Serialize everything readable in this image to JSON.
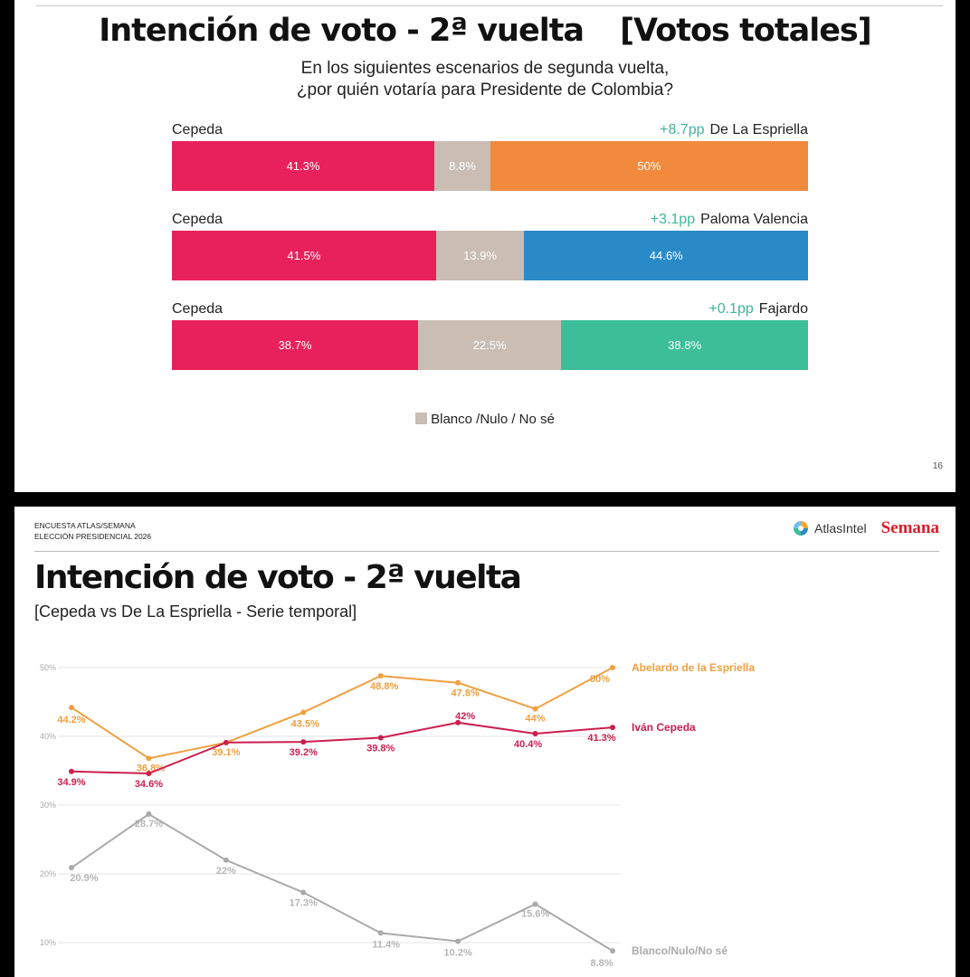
{
  "slide1": {
    "title_main": "Intención de voto - 2ª vuelta",
    "title_bracket": "[Votos totales]",
    "question_line1": "En los siguientes escenarios de segunda vuelta,",
    "question_line2": "¿por quién votaría para Presidente de Colombia?",
    "legend_label": "Blanco /Nulo / No sé",
    "page_number": "16",
    "colors": {
      "cepeda": "#e8215c",
      "blanco": "#c9bdb4",
      "espriella": "#f28a3e",
      "valencia": "#2a8ac8",
      "fajardo": "#3cbf98",
      "pp": "#3fb59a"
    }
  },
  "slide2": {
    "header_line1": "ENCUESTA ATLAS/SEMANA",
    "header_line2": "ELECCIÓN PRESIDENCIAL 2026",
    "logo_atlas": "AtlasIntel",
    "logo_semana": "Semana",
    "title": "Intención de voto - 2ª vuelta",
    "subtitle": "[Cepeda vs De La Espriella - Serie temporal]"
  },
  "chart_data": [
    {
      "type": "bar",
      "orientation": "horizontal-stacked",
      "scenarios": [
        {
          "left": "Cepeda",
          "right": "De La Espriella",
          "diff": "+8.7pp",
          "segments": [
            {
              "name": "Cepeda",
              "value": 41.3,
              "label": "41.3%",
              "color": "#e8215c"
            },
            {
              "name": "Blanco /Nulo / No sé",
              "value": 8.8,
              "label": "8.8%",
              "color": "#c9bdb4"
            },
            {
              "name": "De La Espriella",
              "value": 50,
              "label": "50%",
              "color": "#f28a3e"
            }
          ]
        },
        {
          "left": "Cepeda",
          "right": "Paloma Valencia",
          "diff": "+3.1pp",
          "segments": [
            {
              "name": "Cepeda",
              "value": 41.5,
              "label": "41.5%",
              "color": "#e8215c"
            },
            {
              "name": "Blanco /Nulo / No sé",
              "value": 13.9,
              "label": "13.9%",
              "color": "#c9bdb4"
            },
            {
              "name": "Paloma Valencia",
              "value": 44.6,
              "label": "44.6%",
              "color": "#2a8ac8"
            }
          ]
        },
        {
          "left": "Cepeda",
          "right": "Fajardo",
          "diff": "+0.1pp",
          "segments": [
            {
              "name": "Cepeda",
              "value": 38.7,
              "label": "38.7%",
              "color": "#e8215c"
            },
            {
              "name": "Blanco /Nulo / No sé",
              "value": 22.5,
              "label": "22.5%",
              "color": "#c9bdb4"
            },
            {
              "name": "Fajardo",
              "value": 38.8,
              "label": "38.8%",
              "color": "#3cbf98"
            }
          ]
        }
      ]
    },
    {
      "type": "line",
      "y_ticks": [
        "50%",
        "40%",
        "30%",
        "20%",
        "10%"
      ],
      "y_tick_values": [
        50,
        40,
        30,
        20,
        10
      ],
      "ylim": [
        10,
        50
      ],
      "grid": true,
      "series": [
        {
          "name": "Abelardo de la Espriella",
          "color": "#f0a040",
          "values": [
            44.2,
            36.8,
            39.1,
            43.5,
            48.8,
            47.8,
            44,
            50
          ],
          "labels": [
            "44.2%",
            "36.8%",
            "39.1%",
            "43.5%",
            "48.8%",
            "47.8%",
            "44%",
            "50%"
          ]
        },
        {
          "name": "Iván Cepeda",
          "color": "#cc1f4e",
          "values": [
            34.9,
            34.6,
            39.1,
            39.2,
            39.8,
            42,
            40.4,
            41.3
          ],
          "labels": [
            "34.9%",
            "34.6%",
            "",
            "39.2%",
            "39.8%",
            "42%",
            "40.4%",
            "41.3%"
          ]
        },
        {
          "name": "Blanco/Nulo/No sé",
          "color": "#aaaaaa",
          "values": [
            20.9,
            28.7,
            22,
            17.3,
            11.4,
            10.2,
            15.6,
            8.8
          ],
          "labels": [
            "20.9%",
            "28.7%",
            "22%",
            "17.3%",
            "11.4%",
            "10.2%",
            "15.6%",
            "8.8%"
          ]
        }
      ]
    }
  ]
}
